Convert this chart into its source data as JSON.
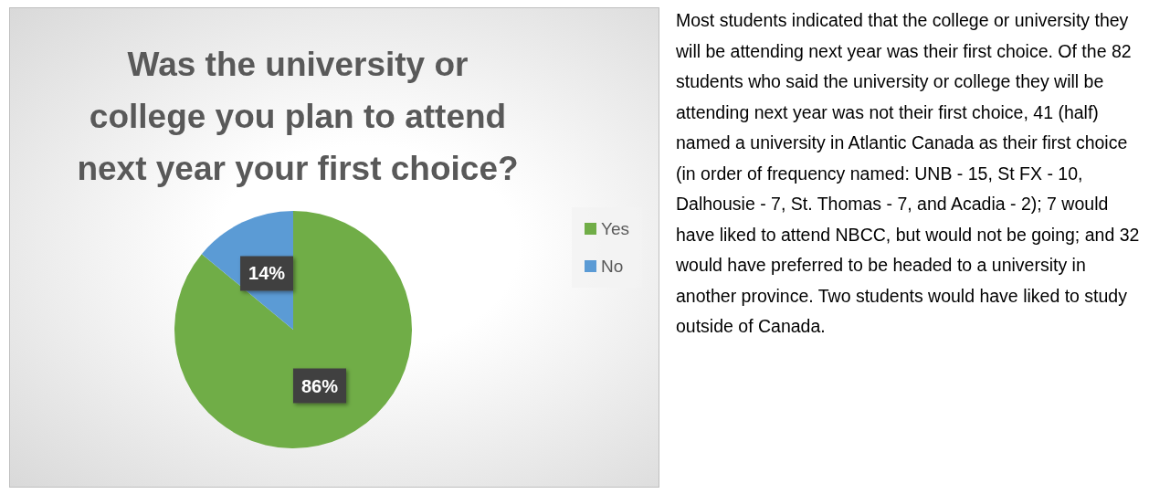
{
  "chart_data": {
    "type": "pie",
    "title": "Was the university or\ncollege you plan to attend\nnext year your first choice?",
    "categories": [
      "Yes",
      "No"
    ],
    "values": [
      86,
      14
    ],
    "colors": [
      "#70ad47",
      "#5b9bd5"
    ],
    "value_labels": [
      "86%",
      "14%"
    ],
    "legend": "right",
    "annotations": [
      "Most students indicated that the college or university they will be attending next year was their first choice. Of the 82 students who said the university or college they will be attending next year was not their first choice, 41 (half) named a university in Atlantic Canada as their first choice (in order of frequency named: UNB - 15, St FX - 10, Dalhousie - 7, St. Thomas - 7, and Acadia - 2); 7 would have liked to attend NBCC, but would not be going; and 32 would have preferred to be headed to a university in another province. Two students would have liked to study outside of Canada."
    ]
  }
}
